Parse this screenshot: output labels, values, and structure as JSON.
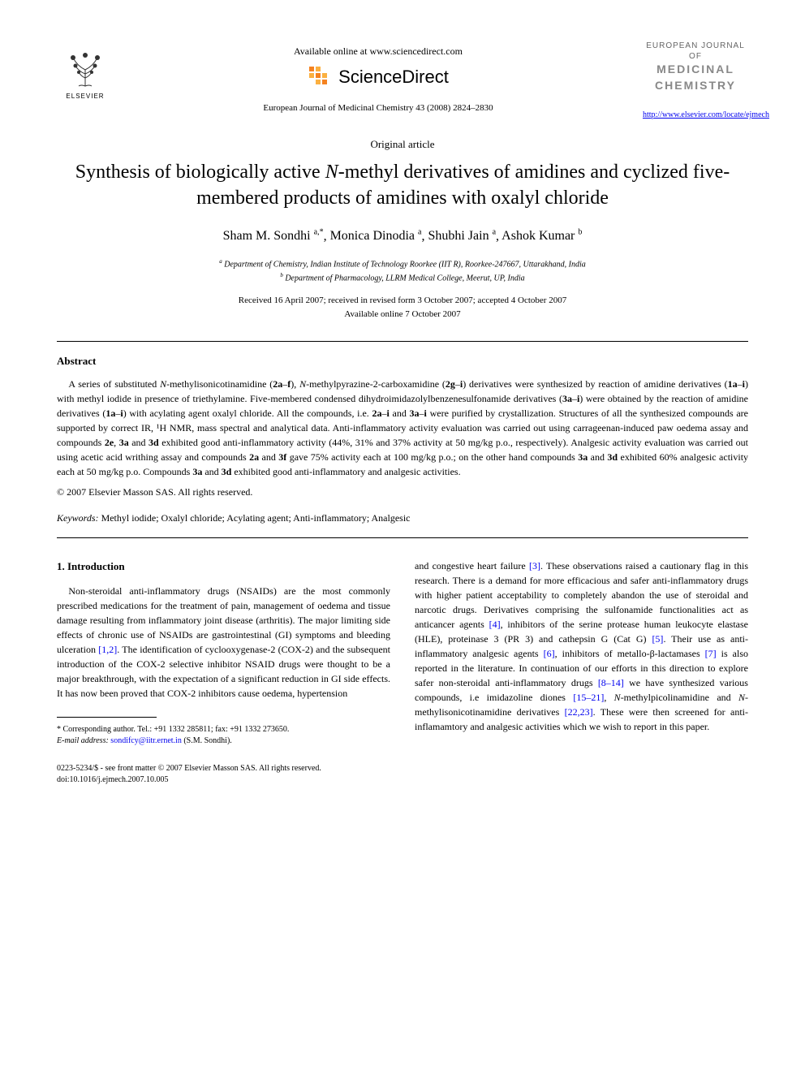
{
  "header": {
    "available_online": "Available online at www.sciencedirect.com",
    "sciencedirect": "ScienceDirect",
    "citation": "European Journal of Medicinal Chemistry 43 (2008) 2824–2830",
    "elsevier_label": "ELSEVIER",
    "journal_name_line1": "EUROPEAN JOURNAL OF",
    "journal_name_line2": "MEDICINAL",
    "journal_name_line3": "CHEMISTRY",
    "journal_url": "http://www.elsevier.com/locate/ejmech"
  },
  "article": {
    "type": "Original article",
    "title_part1": "Synthesis of biologically active ",
    "title_italic": "N",
    "title_part2": "-methyl derivatives of amidines and cyclized five-membered products of amidines with oxalyl chloride",
    "authors": [
      {
        "name": "Sham M. Sondhi",
        "sup": "a,*"
      },
      {
        "name": "Monica Dinodia",
        "sup": "a"
      },
      {
        "name": "Shubhi Jain",
        "sup": "a"
      },
      {
        "name": "Ashok Kumar",
        "sup": "b"
      }
    ],
    "affiliations": [
      {
        "sup": "a",
        "text": "Department of Chemistry, Indian Institute of Technology Roorkee (IIT R), Roorkee-247667, Uttarakhand, India"
      },
      {
        "sup": "b",
        "text": "Department of Pharmacology, LLRM Medical College, Meerut, UP, India"
      }
    ],
    "received": "Received 16 April 2007; received in revised form 3 October 2007; accepted 4 October 2007",
    "available": "Available online 7 October 2007"
  },
  "abstract": {
    "heading": "Abstract",
    "text": "A series of substituted N-methylisonicotinamidine (2a–f), N-methylpyrazine-2-carboxamidine (2g–i) derivatives were synthesized by reaction of amidine derivatives (1a–i) with methyl iodide in presence of triethylamine. Five-membered condensed dihydroimidazolylbenzenesulfonamide derivatives (3a–i) were obtained by the reaction of amidine derivatives (1a–i) with acylating agent oxalyl chloride. All the compounds, i.e. 2a–i and 3a–i were purified by crystallization. Structures of all the synthesized compounds are supported by correct IR, ¹H NMR, mass spectral and analytical data. Anti-inflammatory activity evaluation was carried out using carrageenan-induced paw oedema assay and compounds 2e, 3a and 3d exhibited good anti-inflammatory activity (44%, 31% and 37% activity at 50 mg/kg p.o., respectively). Analgesic activity evaluation was carried out using acetic acid writhing assay and compounds 2a and 3f gave 75% activity each at 100 mg/kg p.o.; on the other hand compounds 3a and 3d exhibited 60% analgesic activity each at 50 mg/kg p.o. Compounds 3a and 3d exhibited good anti-inflammatory and analgesic activities.",
    "copyright": "© 2007 Elsevier Masson SAS. All rights reserved.",
    "keywords_label": "Keywords:",
    "keywords": "Methyl iodide; Oxalyl chloride; Acylating agent; Anti-inflammatory; Analgesic"
  },
  "body": {
    "section_heading": "1. Introduction",
    "col1": "Non-steroidal anti-inflammatory drugs (NSAIDs) are the most commonly prescribed medications for the treatment of pain, management of oedema and tissue damage resulting from inflammatory joint disease (arthritis). The major limiting side effects of chronic use of NSAIDs are gastrointestinal (GI) symptoms and bleeding ulceration [1,2]. The identification of cyclooxygenase-2 (COX-2) and the subsequent introduction of the COX-2 selective inhibitor NSAID drugs were thought to be a major breakthrough, with the expectation of a significant reduction in GI side effects. It has now been proved that COX-2 inhibitors cause oedema, hypertension",
    "col2": "and congestive heart failure [3]. These observations raised a cautionary flag in this research. There is a demand for more efficacious and safer anti-inflammatory drugs with higher patient acceptability to completely abandon the use of steroidal and narcotic drugs. Derivatives comprising the sulfonamide functionalities act as anticancer agents [4], inhibitors of the serine protease human leukocyte elastase (HLE), proteinase 3 (PR 3) and cathepsin G (Cat G) [5]. Their use as anti-inflammatory analgesic agents [6], inhibitors of metallo-β-lactamases [7] is also reported in the literature. In continuation of our efforts in this direction to explore safer non-steroidal anti-inflammatory drugs [8–14] we have synthesized various compounds, i.e imidazoline diones [15–21], N-methylpicolinamidine and N-methylisonicotinamidine derivatives [22,23]. These were then screened for anti-inflamamtory and analgesic activities which we wish to report in this paper.",
    "refs_col1": [
      "[1,2]"
    ],
    "refs_col2": [
      "[3]",
      "[4]",
      "[5]",
      "[6]",
      "[7]",
      "[8–14]",
      "[15–21]",
      "[22,23]"
    ]
  },
  "footnote": {
    "corresponding": "* Corresponding author. Tel.: +91 1332 285811; fax: +91 1332 273650.",
    "email_label": "E-mail address:",
    "email": "sondifcy@iitr.ernet.in",
    "email_suffix": "(S.M. Sondhi)."
  },
  "bottom": {
    "issn": "0223-5234/$ - see front matter © 2007 Elsevier Masson SAS. All rights reserved.",
    "doi": "doi:10.1016/j.ejmech.2007.10.005"
  },
  "colors": {
    "text": "#000000",
    "link": "#0000ee",
    "journal_gray": "#888888",
    "journal_light": "#666666",
    "sd_orange": "#f58220",
    "sd_lightorange": "#fbb040"
  }
}
